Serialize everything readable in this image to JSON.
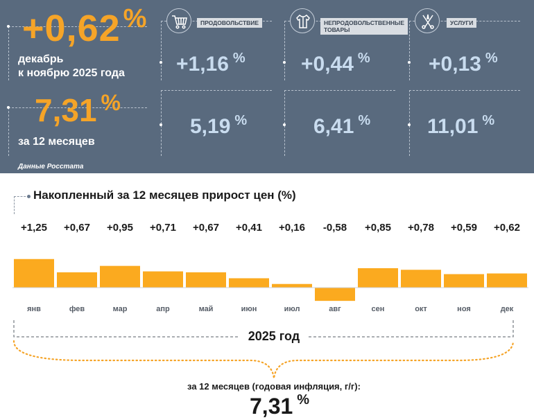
{
  "summary": {
    "month_change": "+0,62",
    "month_unit": "%",
    "month_caption_line1": "декабрь",
    "month_caption_line2": "к ноябрю 2025 года",
    "year_change": "7,31",
    "year_unit": "%",
    "year_caption": "за 12 месяцев",
    "source": "Данные Росстата"
  },
  "categories": [
    {
      "name": "ПРОДОВОЛЬСТВИЕ",
      "icon": "shopping-cart-icon",
      "month": "+1,16",
      "year": "5,19",
      "unit": "%"
    },
    {
      "name_line1": "НЕПРОДОВОЛЬСТВЕННЫЕ",
      "name_line2": "ТОВАРЫ",
      "icon": "clothes-icon",
      "month": "+0,44",
      "year": "6,41",
      "unit": "%"
    },
    {
      "name": "УСЛУГИ",
      "icon": "tools-icon",
      "month": "+0,13",
      "year": "11,01",
      "unit": "%"
    }
  ],
  "colors": {
    "panel_bg": "#596a7e",
    "accent_orange": "#f5a428",
    "value_blue": "#c9dcef",
    "bar_fill": "#fbaa1f"
  },
  "chart_data": {
    "type": "bar",
    "title": "Накопленный за 12 месяцев прирост цен (%)",
    "categories": [
      "янв",
      "фев",
      "мар",
      "апр",
      "май",
      "июн",
      "июл",
      "авг",
      "сен",
      "окт",
      "ноя",
      "дек"
    ],
    "values": [
      1.25,
      0.67,
      0.95,
      0.71,
      0.67,
      0.41,
      0.16,
      -0.58,
      0.85,
      0.78,
      0.59,
      0.62
    ],
    "value_labels": [
      "+1,25",
      "+0,67",
      "+0,95",
      "+0,71",
      "+0,67",
      "+0,41",
      "+0,16",
      "-0,58",
      "+0,85",
      "+0,78",
      "+0,59",
      "+0,62"
    ],
    "year_label": "2025 год",
    "annual_caption": "за 12 месяцев (годовая инфляция, г/г):",
    "annual_value": "7,31",
    "annual_unit": "%",
    "grid": false,
    "legend": "none"
  }
}
